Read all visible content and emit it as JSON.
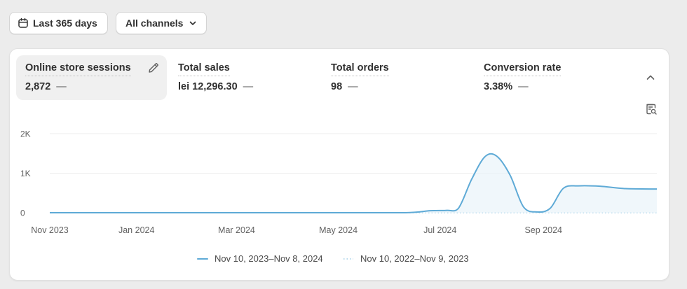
{
  "filters": {
    "date_range_label": "Last 365 days",
    "channel_label": "All channels"
  },
  "metrics": [
    {
      "label": "Online store sessions",
      "value": "2,872",
      "delta": "—",
      "active": true
    },
    {
      "label": "Total sales",
      "value": "lei 12,296.30",
      "delta": "—"
    },
    {
      "label": "Total orders",
      "value": "98",
      "delta": "—"
    },
    {
      "label": "Conversion rate",
      "value": "3.38%",
      "delta": "—"
    }
  ],
  "chart_data": {
    "type": "line",
    "ylim": [
      0,
      2000
    ],
    "y_ticks": [
      {
        "value": 0,
        "label": "0"
      },
      {
        "value": 1000,
        "label": "1K"
      },
      {
        "value": 2000,
        "label": "2K"
      }
    ],
    "x_ticks": [
      "Nov 2023",
      "Jan 2024",
      "Mar 2024",
      "May 2024",
      "Jul 2024",
      "Sep 2024"
    ],
    "grid": true,
    "legend_position": "bottom",
    "series": [
      {
        "name": "Nov 10, 2023–Nov 8, 2024",
        "style": "solid",
        "color": "#5eaad6",
        "points": [
          [
            "2023-11-10",
            0
          ],
          [
            "2024-01-01",
            0
          ],
          [
            "2024-03-01",
            0
          ],
          [
            "2024-05-01",
            0
          ],
          [
            "2024-06-10",
            0
          ],
          [
            "2024-06-25",
            50
          ],
          [
            "2024-07-05",
            60
          ],
          [
            "2024-07-12",
            110
          ],
          [
            "2024-07-20",
            850
          ],
          [
            "2024-07-28",
            1420
          ],
          [
            "2024-08-04",
            1430
          ],
          [
            "2024-08-12",
            950
          ],
          [
            "2024-08-20",
            150
          ],
          [
            "2024-08-28",
            20
          ],
          [
            "2024-09-05",
            110
          ],
          [
            "2024-09-13",
            620
          ],
          [
            "2024-09-22",
            680
          ],
          [
            "2024-10-05",
            670
          ],
          [
            "2024-10-20",
            610
          ],
          [
            "2024-11-08",
            600
          ]
        ]
      },
      {
        "name": "Nov 10, 2022–Nov 9, 2023",
        "style": "dotted",
        "color": "#9fcde6",
        "points": [
          [
            "2023-11-10",
            0
          ],
          [
            "2024-11-08",
            0
          ]
        ]
      }
    ]
  }
}
